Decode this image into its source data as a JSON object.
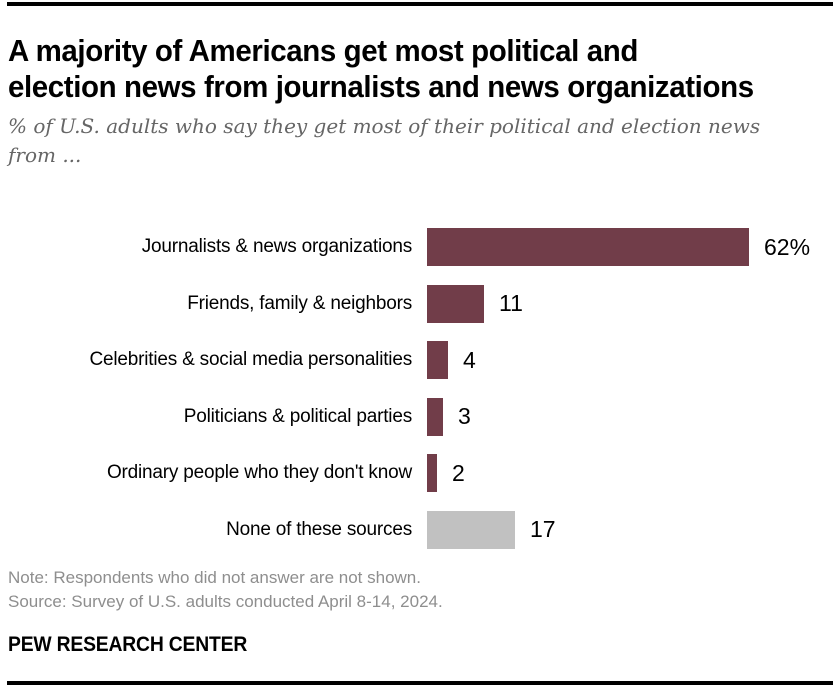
{
  "header": {
    "title_lines": [
      "A majority of Americans get most political and",
      "election news from journalists and news organizations"
    ],
    "subtitle_lines": [
      "% of U.S. adults who say they get most of their political and election news",
      "from ..."
    ]
  },
  "chart_data": {
    "type": "bar",
    "orientation": "horizontal",
    "title": "A majority of Americans get most political and election news from journalists and news organizations",
    "subtitle": "% of U.S. adults who say they get most of their political and election news from ...",
    "categories": [
      "Journalists & news organizations",
      "Friends, family & neighbors",
      "Celebrities & social media personalities",
      "Politicians & political parties",
      "Ordinary people who they don't know",
      "None of these sources"
    ],
    "values": [
      62,
      11,
      4,
      3,
      2,
      17
    ],
    "value_labels": [
      "62%",
      "11",
      "4",
      "3",
      "2",
      "17"
    ],
    "bar_colors": [
      "#713D49",
      "#713D49",
      "#713D49",
      "#713D49",
      "#713D49",
      "#C1C1C1"
    ],
    "xlim": [
      0,
      100
    ],
    "axis": "hidden",
    "grid": "off",
    "legend": "none",
    "unit": "% of U.S. adults"
  },
  "colors": {
    "accent_maroon": "#713D49",
    "muted_gray_bar": "#C1C1C1",
    "subtitle_gray": "#666666",
    "note_gray": "#8E8E8E",
    "rule_black": "#000000"
  },
  "footer": {
    "note": "Note: Respondents who did not answer are not shown.",
    "source": "Source: Survey of U.S. adults conducted April 8-14, 2024.",
    "brand": "PEW RESEARCH CENTER"
  }
}
